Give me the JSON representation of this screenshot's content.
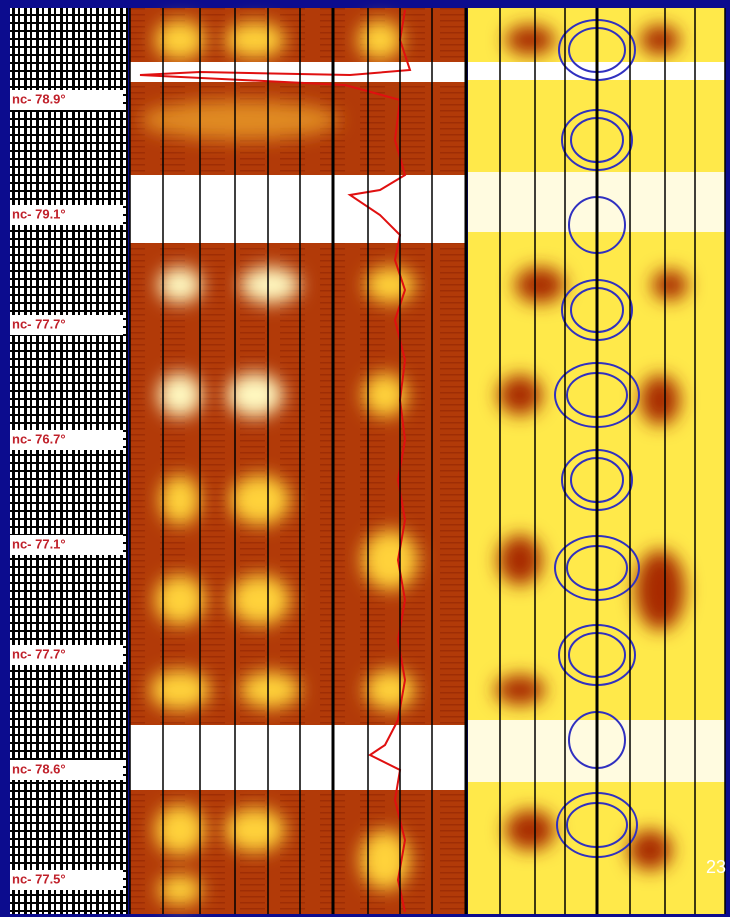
{
  "log_labels": [
    "nc- 78.9°",
    "nc- 79.1°",
    "nc- 77.7°",
    "nc- 76.7°",
    "nc- 77.1°",
    "nc- 77.7°",
    "nc- 78.6°",
    "nc- 77.5°"
  ],
  "page_number": "23"
}
